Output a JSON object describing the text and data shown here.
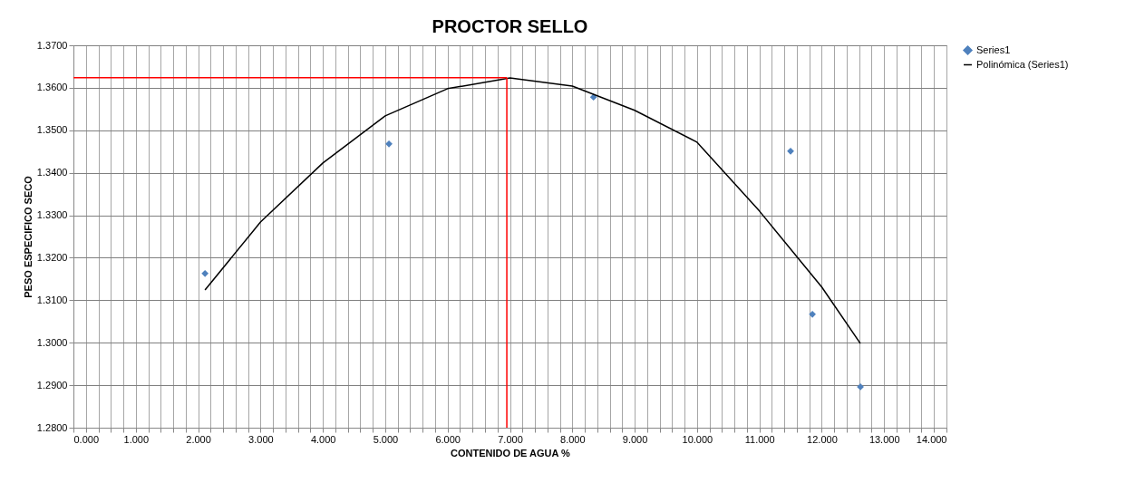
{
  "chart_data": {
    "type": "scatter",
    "title": "PROCTOR SELLO",
    "xlabel": "CONTENIDO DE AGUA %",
    "ylabel": "PESO ESPECIFICO SECO",
    "series": [
      {
        "name": "Series1",
        "color": "#4f81bd",
        "marker": "diamond",
        "x": [
          2.11,
          5.06,
          8.34,
          11.5,
          11.85,
          12.62
        ],
        "values": [
          1.3163,
          1.3468,
          1.3578,
          1.3451,
          1.3067,
          1.2896
        ]
      },
      {
        "name": "Polinómica (Series1)",
        "type": "line",
        "color": "#000000",
        "marker": "none",
        "line_style": "solid",
        "x": [
          2.11,
          3,
          4,
          5,
          6,
          7,
          8,
          9,
          10,
          11,
          12,
          12.62
        ],
        "values": [
          1.3124,
          1.3284,
          1.3423,
          1.3534,
          1.3598,
          1.3623,
          1.3604,
          1.3547,
          1.3472,
          1.331,
          1.3131,
          1.2998
        ]
      }
    ],
    "ref_lines": [
      {
        "axis": "y",
        "value": 1.3624,
        "color": "#ff0000"
      },
      {
        "axis": "x",
        "value": 6.95,
        "color": "#ff0000"
      }
    ],
    "xlim": [
      0,
      14
    ],
    "ylim": [
      1.28,
      1.37
    ],
    "xticks": [
      {
        "value": 0,
        "label": "0.000"
      },
      {
        "value": 0.2,
        "label": null
      },
      {
        "value": 0.4,
        "label": null
      },
      {
        "value": 0.6,
        "label": null
      },
      {
        "value": 0.8,
        "label": null
      },
      {
        "value": 1,
        "label": "1.000"
      },
      {
        "value": 1.2,
        "label": null
      },
      {
        "value": 1.4,
        "label": null
      },
      {
        "value": 1.6,
        "label": null
      },
      {
        "value": 1.8,
        "label": null
      },
      {
        "value": 2,
        "label": "2.000"
      },
      {
        "value": 2.2,
        "label": null
      },
      {
        "value": 2.4,
        "label": null
      },
      {
        "value": 2.6,
        "label": null
      },
      {
        "value": 2.8,
        "label": null
      },
      {
        "value": 3,
        "label": "3.000"
      },
      {
        "value": 3.2,
        "label": null
      },
      {
        "value": 3.4,
        "label": null
      },
      {
        "value": 3.6,
        "label": null
      },
      {
        "value": 3.8,
        "label": null
      },
      {
        "value": 4,
        "label": "4.000"
      },
      {
        "value": 4.2,
        "label": null
      },
      {
        "value": 4.4,
        "label": null
      },
      {
        "value": 4.6,
        "label": null
      },
      {
        "value": 4.8,
        "label": null
      },
      {
        "value": 5,
        "label": "5.000"
      },
      {
        "value": 5.2,
        "label": null
      },
      {
        "value": 5.4,
        "label": null
      },
      {
        "value": 5.6,
        "label": null
      },
      {
        "value": 5.8,
        "label": null
      },
      {
        "value": 6,
        "label": "6.000"
      },
      {
        "value": 6.2,
        "label": null
      },
      {
        "value": 6.4,
        "label": null
      },
      {
        "value": 6.6,
        "label": null
      },
      {
        "value": 6.8,
        "label": null
      },
      {
        "value": 7,
        "label": "7.000"
      },
      {
        "value": 7.2,
        "label": null
      },
      {
        "value": 7.4,
        "label": null
      },
      {
        "value": 7.6,
        "label": null
      },
      {
        "value": 7.8,
        "label": null
      },
      {
        "value": 8,
        "label": "8.000"
      },
      {
        "value": 8.2,
        "label": null
      },
      {
        "value": 8.4,
        "label": null
      },
      {
        "value": 8.6,
        "label": null
      },
      {
        "value": 8.8,
        "label": null
      },
      {
        "value": 9,
        "label": "9.000"
      },
      {
        "value": 9.2,
        "label": null
      },
      {
        "value": 9.4,
        "label": null
      },
      {
        "value": 9.6,
        "label": null
      },
      {
        "value": 9.8,
        "label": null
      },
      {
        "value": 10,
        "label": "10.000"
      },
      {
        "value": 10.2,
        "label": null
      },
      {
        "value": 10.4,
        "label": null
      },
      {
        "value": 10.6,
        "label": null
      },
      {
        "value": 10.8,
        "label": null
      },
      {
        "value": 11,
        "label": "11.000"
      },
      {
        "value": 11.2,
        "label": null
      },
      {
        "value": 11.4,
        "label": null
      },
      {
        "value": 11.6,
        "label": null
      },
      {
        "value": 11.8,
        "label": null
      },
      {
        "value": 12,
        "label": "12.000"
      },
      {
        "value": 12.2,
        "label": null
      },
      {
        "value": 12.4,
        "label": null
      },
      {
        "value": 12.6,
        "label": null
      },
      {
        "value": 12.8,
        "label": null
      },
      {
        "value": 13,
        "label": "13.000"
      },
      {
        "value": 13.2,
        "label": null
      },
      {
        "value": 13.4,
        "label": null
      },
      {
        "value": 13.6,
        "label": null
      },
      {
        "value": 13.8,
        "label": null
      },
      {
        "value": 14,
        "label": "14.000"
      }
    ],
    "yticks": [
      {
        "value": 1.28,
        "label": "1.2800"
      },
      {
        "value": 1.29,
        "label": "1.2900"
      },
      {
        "value": 1.3,
        "label": "1.3000"
      },
      {
        "value": 1.31,
        "label": "1.3100"
      },
      {
        "value": 1.32,
        "label": "1.3200"
      },
      {
        "value": 1.33,
        "label": "1.3300"
      },
      {
        "value": 1.34,
        "label": "1.3400"
      },
      {
        "value": 1.35,
        "label": "1.3500"
      },
      {
        "value": 1.36,
        "label": "1.3600"
      },
      {
        "value": 1.37,
        "label": "1.3700"
      }
    ],
    "grid": true,
    "legend": "right"
  }
}
